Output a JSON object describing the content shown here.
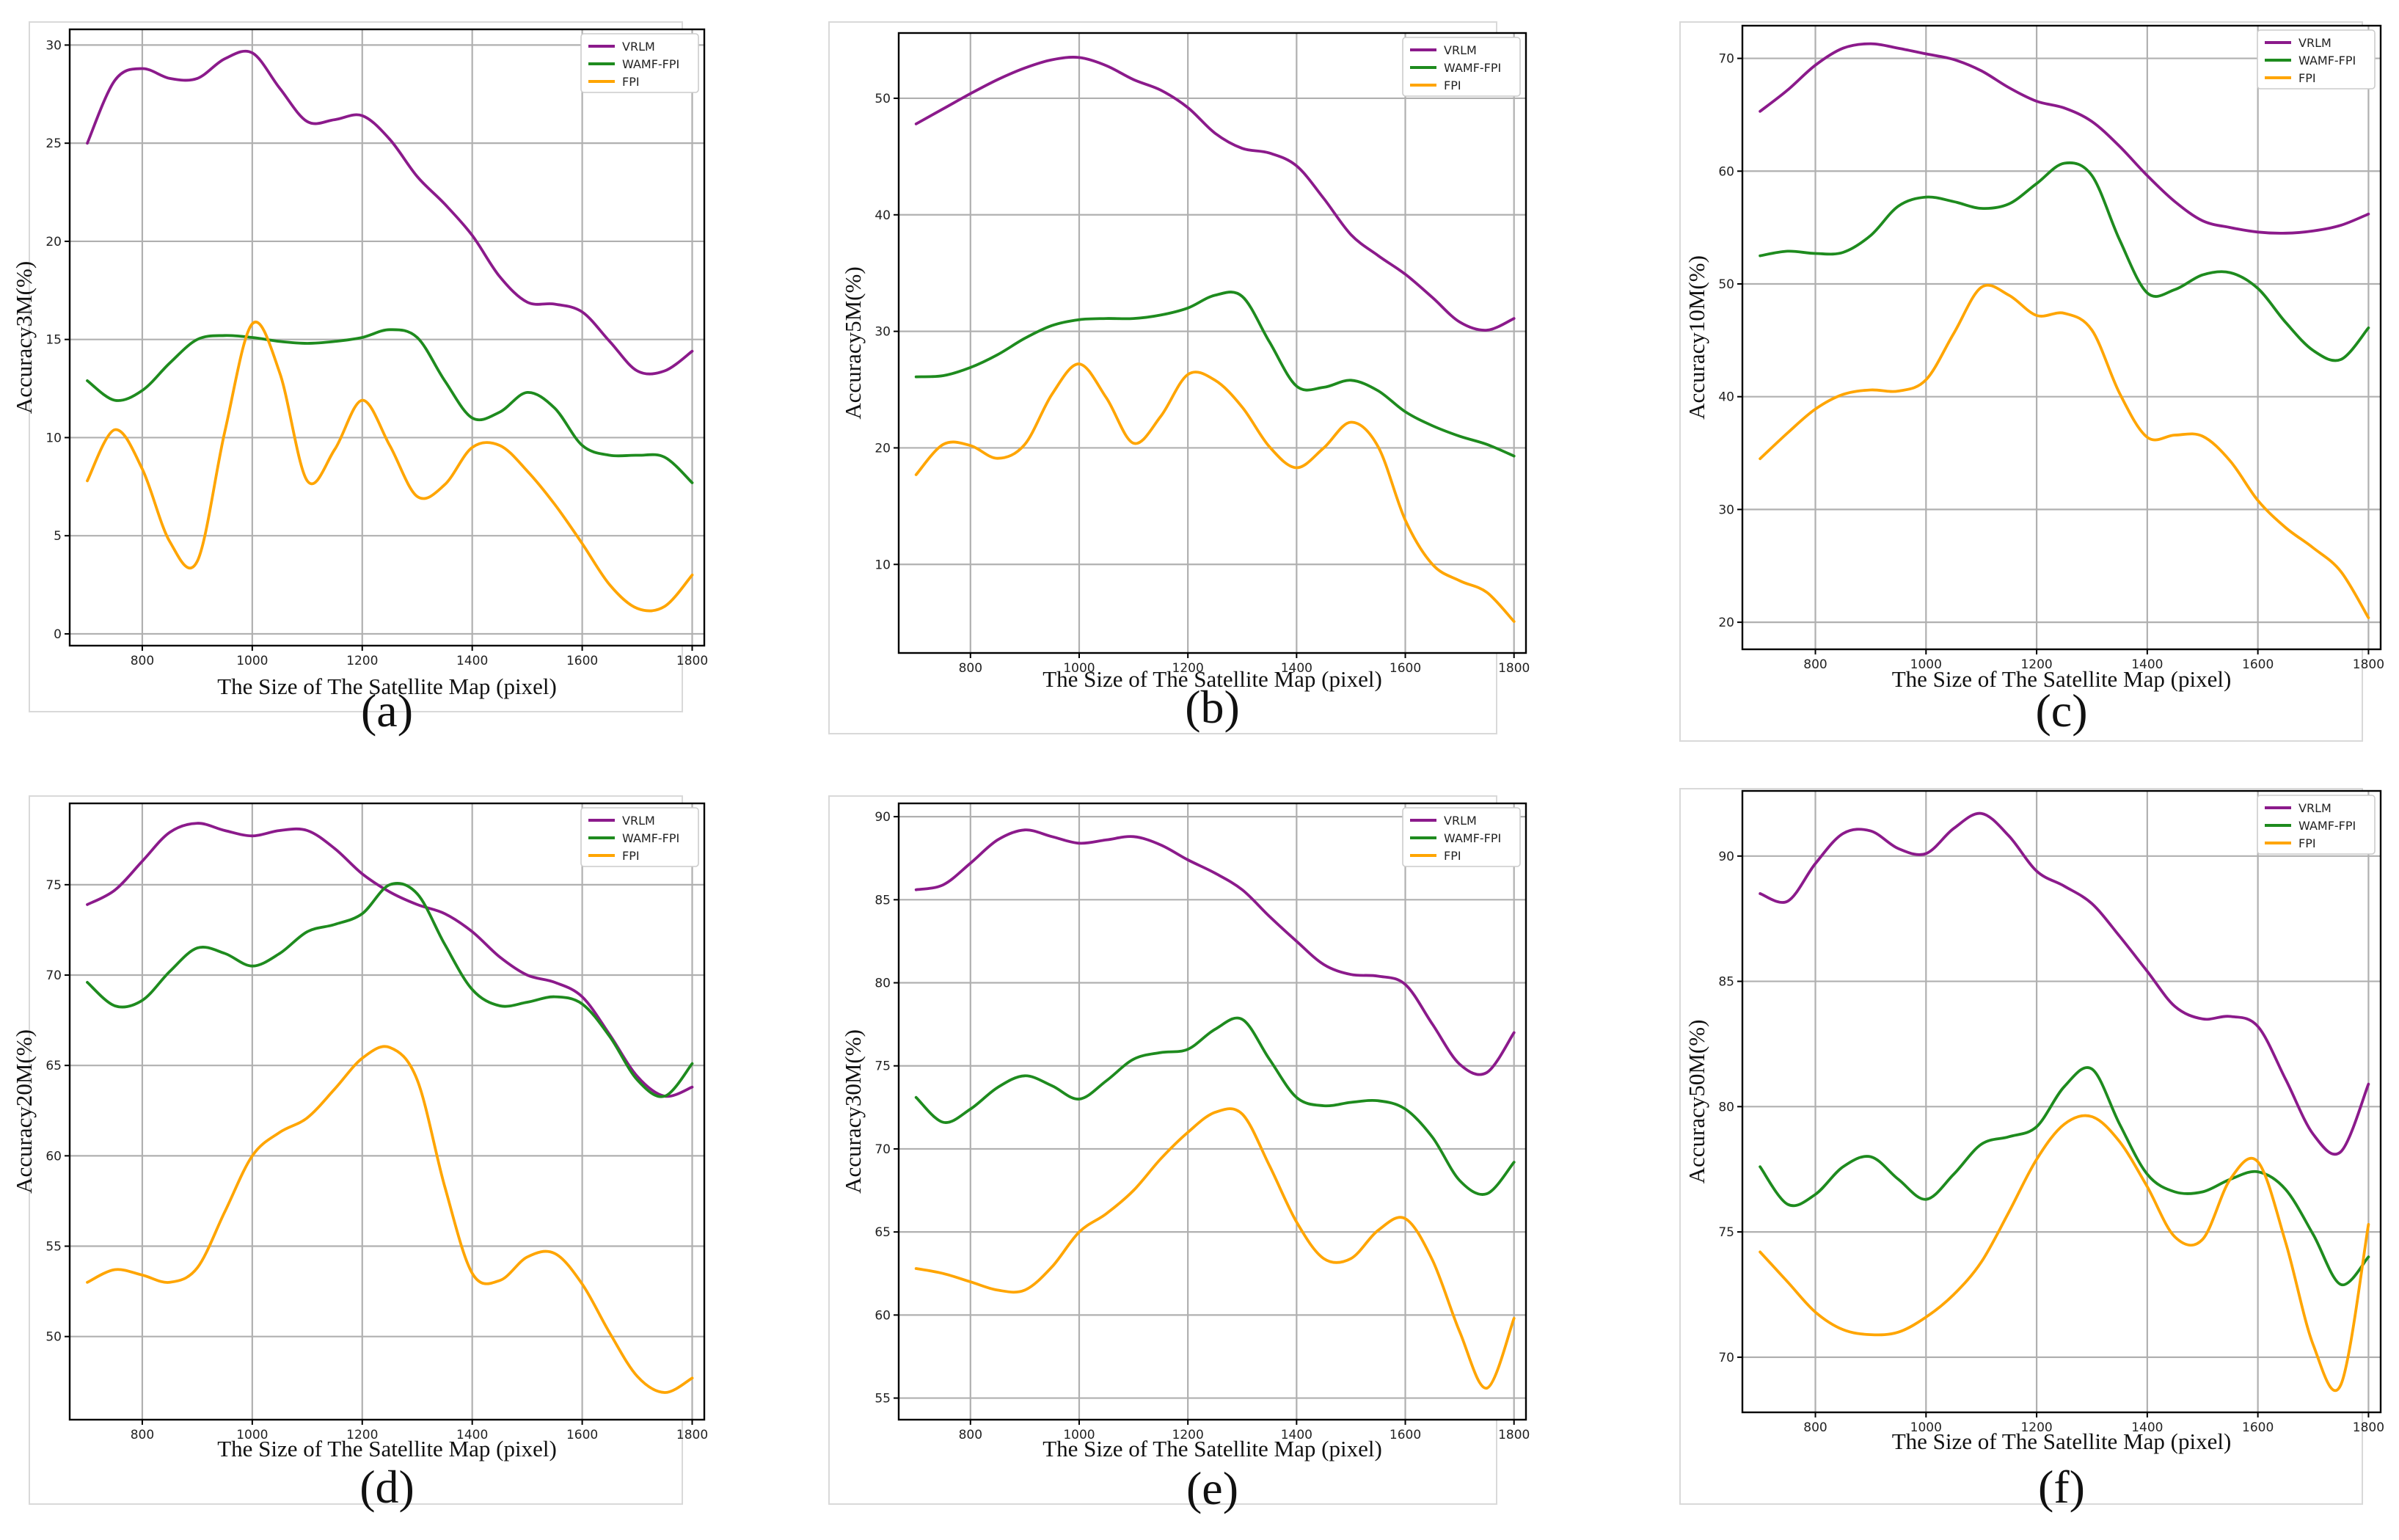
{
  "colors": {
    "VRLM": "#8B1A8B",
    "WAMF-FPI": "#1E8B1E",
    "FPI": "#FFA500"
  },
  "chart_data": [
    {
      "type": "line",
      "panel_label": "(a)",
      "xlabel": "The Size of The Satellite Map (pixel)",
      "ylabel": "Accuracy3M(%)",
      "xlim": [
        668,
        1822
      ],
      "ylim": [
        -0.6,
        30.8
      ],
      "xticks": [
        800,
        1000,
        1200,
        1400,
        1600,
        1800
      ],
      "yticks": [
        0,
        5,
        10,
        15,
        20,
        25,
        30
      ],
      "legend_position": "top-right",
      "x": [
        700,
        750,
        800,
        850,
        900,
        950,
        1000,
        1050,
        1100,
        1150,
        1200,
        1250,
        1300,
        1350,
        1400,
        1450,
        1500,
        1550,
        1600,
        1650,
        1700,
        1750,
        1800
      ],
      "series": [
        {
          "name": "VRLM",
          "values": [
            25.0,
            28.2,
            28.8,
            28.3,
            28.3,
            29.3,
            29.6,
            27.8,
            26.1,
            26.2,
            26.4,
            25.2,
            23.3,
            21.9,
            20.3,
            18.2,
            16.9,
            16.8,
            16.4,
            14.9,
            13.4,
            13.4,
            14.4
          ]
        },
        {
          "name": "WAMF-FPI",
          "values": [
            12.9,
            11.9,
            12.4,
            13.8,
            15.0,
            15.2,
            15.1,
            14.9,
            14.8,
            14.9,
            15.1,
            15.5,
            15.1,
            12.9,
            11.0,
            11.3,
            12.3,
            11.5,
            9.6,
            9.1,
            9.1,
            9.0,
            7.7
          ]
        },
        {
          "name": "FPI",
          "values": [
            7.8,
            10.4,
            8.4,
            4.7,
            3.7,
            10.3,
            15.8,
            13.3,
            7.8,
            9.4,
            11.9,
            9.6,
            7.0,
            7.6,
            9.5,
            9.6,
            8.3,
            6.6,
            4.6,
            2.5,
            1.3,
            1.4,
            3.0
          ]
        }
      ]
    },
    {
      "type": "line",
      "panel_label": "(b)",
      "xlabel": "The Size of The Satellite Map (pixel)",
      "ylabel": "Accuracy5M(%)",
      "xlim": [
        668,
        1822
      ],
      "ylim": [
        2.4,
        55.6
      ],
      "xticks": [
        800,
        1000,
        1200,
        1400,
        1600,
        1800
      ],
      "yticks": [
        10,
        20,
        30,
        40,
        50
      ],
      "legend_position": "top-right",
      "x": [
        700,
        750,
        800,
        850,
        900,
        950,
        1000,
        1050,
        1100,
        1150,
        1200,
        1250,
        1300,
        1350,
        1400,
        1450,
        1500,
        1550,
        1600,
        1650,
        1700,
        1750,
        1800
      ],
      "series": [
        {
          "name": "VRLM",
          "values": [
            47.8,
            49.1,
            50.4,
            51.6,
            52.6,
            53.3,
            53.5,
            52.8,
            51.6,
            50.7,
            49.2,
            47.0,
            45.7,
            45.3,
            44.2,
            41.4,
            38.3,
            36.5,
            34.9,
            32.9,
            30.8,
            30.1,
            31.1
          ]
        },
        {
          "name": "WAMF-FPI",
          "values": [
            26.1,
            26.2,
            26.9,
            28.0,
            29.4,
            30.5,
            31.0,
            31.1,
            31.1,
            31.4,
            32.0,
            33.1,
            33.0,
            29.1,
            25.3,
            25.2,
            25.8,
            24.9,
            23.1,
            21.9,
            21.0,
            20.3,
            19.3
          ]
        },
        {
          "name": "FPI",
          "values": [
            17.7,
            20.3,
            20.2,
            19.1,
            20.3,
            24.6,
            27.2,
            24.3,
            20.4,
            22.7,
            26.3,
            25.8,
            23.5,
            20.1,
            18.3,
            20.0,
            22.2,
            20.1,
            13.8,
            10.0,
            8.6,
            7.6,
            5.1
          ]
        }
      ]
    },
    {
      "type": "line",
      "panel_label": "(c)",
      "xlabel": "The Size of The Satellite Map (pixel)",
      "ylabel": "Accuracy10M(%)",
      "xlim": [
        668,
        1822
      ],
      "ylim": [
        17.6,
        72.9
      ],
      "xticks": [
        800,
        1000,
        1200,
        1400,
        1600,
        1800
      ],
      "yticks": [
        20,
        30,
        40,
        50,
        60,
        70
      ],
      "legend_position": "top-right",
      "x": [
        700,
        750,
        800,
        850,
        900,
        950,
        1000,
        1050,
        1100,
        1150,
        1200,
        1250,
        1300,
        1350,
        1400,
        1450,
        1500,
        1550,
        1600,
        1650,
        1700,
        1750,
        1800
      ],
      "series": [
        {
          "name": "VRLM",
          "values": [
            65.3,
            67.2,
            69.4,
            70.9,
            71.3,
            70.9,
            70.4,
            69.9,
            68.9,
            67.4,
            66.2,
            65.6,
            64.4,
            62.2,
            59.6,
            57.3,
            55.6,
            55.0,
            54.6,
            54.5,
            54.7,
            55.2,
            56.2
          ]
        },
        {
          "name": "WAMF-FPI",
          "values": [
            52.5,
            52.9,
            52.7,
            52.8,
            54.3,
            56.9,
            57.7,
            57.3,
            56.7,
            57.1,
            58.9,
            60.7,
            59.6,
            53.9,
            49.2,
            49.5,
            50.8,
            51.0,
            49.6,
            46.6,
            44.1,
            43.3,
            46.1
          ]
        },
        {
          "name": "FPI",
          "values": [
            34.5,
            36.8,
            38.9,
            40.2,
            40.6,
            40.5,
            41.5,
            45.6,
            49.7,
            49.0,
            47.2,
            47.4,
            45.9,
            40.3,
            36.4,
            36.6,
            36.5,
            34.3,
            30.8,
            28.4,
            26.6,
            24.5,
            20.4
          ]
        }
      ]
    },
    {
      "type": "line",
      "panel_label": "(d)",
      "xlabel": "The Size of The Satellite Map (pixel)",
      "ylabel": "Accuracy20M(%)",
      "xlim": [
        668,
        1822
      ],
      "ylim": [
        45.4,
        79.5
      ],
      "xticks": [
        800,
        1000,
        1200,
        1400,
        1600,
        1800
      ],
      "yticks": [
        50,
        55,
        60,
        65,
        70,
        75
      ],
      "legend_position": "top-right",
      "x": [
        700,
        750,
        800,
        850,
        900,
        950,
        1000,
        1050,
        1100,
        1150,
        1200,
        1250,
        1300,
        1350,
        1400,
        1450,
        1500,
        1550,
        1600,
        1650,
        1700,
        1750,
        1800
      ],
      "series": [
        {
          "name": "VRLM",
          "values": [
            73.9,
            74.7,
            76.3,
            77.9,
            78.4,
            78.0,
            77.7,
            78.0,
            78.0,
            77.0,
            75.6,
            74.6,
            73.9,
            73.4,
            72.4,
            71.0,
            70.0,
            69.6,
            68.8,
            66.7,
            64.4,
            63.3,
            63.8
          ]
        },
        {
          "name": "WAMF-FPI",
          "values": [
            69.6,
            68.3,
            68.6,
            70.2,
            71.5,
            71.2,
            70.5,
            71.2,
            72.4,
            72.8,
            73.4,
            75.0,
            74.5,
            71.7,
            69.2,
            68.3,
            68.5,
            68.8,
            68.4,
            66.6,
            64.2,
            63.3,
            65.1
          ]
        },
        {
          "name": "FPI",
          "values": [
            53.0,
            53.7,
            53.4,
            53.0,
            53.8,
            56.9,
            60.0,
            61.3,
            62.1,
            63.7,
            65.4,
            66.0,
            64.2,
            58.3,
            53.5,
            53.1,
            54.4,
            54.6,
            52.9,
            50.2,
            47.8,
            46.9,
            47.7
          ]
        }
      ]
    },
    {
      "type": "line",
      "panel_label": "(e)",
      "xlabel": "The Size of The Satellite Map (pixel)",
      "ylabel": "Accuracy30M(%)",
      "xlim": [
        668,
        1822
      ],
      "ylim": [
        53.7,
        90.8
      ],
      "xticks": [
        800,
        1000,
        1200,
        1400,
        1600,
        1800
      ],
      "yticks": [
        55,
        60,
        65,
        70,
        75,
        80,
        85,
        90
      ],
      "legend_position": "top-right",
      "x": [
        700,
        750,
        800,
        850,
        900,
        950,
        1000,
        1050,
        1100,
        1150,
        1200,
        1250,
        1300,
        1350,
        1400,
        1450,
        1500,
        1550,
        1600,
        1650,
        1700,
        1750,
        1800
      ],
      "series": [
        {
          "name": "VRLM",
          "values": [
            85.6,
            85.9,
            87.2,
            88.6,
            89.2,
            88.8,
            88.4,
            88.6,
            88.8,
            88.3,
            87.4,
            86.6,
            85.6,
            84.0,
            82.5,
            81.1,
            80.5,
            80.4,
            79.9,
            77.5,
            75.1,
            74.6,
            77.0
          ]
        },
        {
          "name": "WAMF-FPI",
          "values": [
            73.1,
            71.6,
            72.4,
            73.7,
            74.4,
            73.8,
            73.0,
            74.1,
            75.4,
            75.8,
            76.0,
            77.2,
            77.8,
            75.4,
            73.1,
            72.6,
            72.8,
            72.9,
            72.4,
            70.7,
            68.1,
            67.3,
            69.2
          ]
        },
        {
          "name": "FPI",
          "values": [
            62.8,
            62.5,
            62.0,
            61.5,
            61.5,
            62.9,
            65.0,
            66.1,
            67.5,
            69.4,
            71.0,
            72.2,
            72.1,
            69.0,
            65.6,
            63.4,
            63.4,
            65.1,
            65.8,
            63.3,
            59.0,
            55.6,
            59.8
          ]
        }
      ]
    },
    {
      "type": "line",
      "panel_label": "(f)",
      "xlabel": "The Size of The Satellite Map (pixel)",
      "ylabel": "Accuracy50M(%)",
      "xlim": [
        668,
        1822
      ],
      "ylim": [
        67.8,
        92.6
      ],
      "xticks": [
        800,
        1000,
        1200,
        1400,
        1600,
        1800
      ],
      "yticks": [
        70,
        75,
        80,
        85,
        90
      ],
      "legend_position": "top-right",
      "x": [
        700,
        750,
        800,
        850,
        900,
        950,
        1000,
        1050,
        1100,
        1150,
        1200,
        1250,
        1300,
        1350,
        1400,
        1450,
        1500,
        1550,
        1600,
        1650,
        1700,
        1750,
        1800
      ],
      "series": [
        {
          "name": "VRLM",
          "values": [
            88.5,
            88.2,
            89.7,
            90.9,
            91.0,
            90.3,
            90.1,
            91.1,
            91.7,
            90.8,
            89.4,
            88.8,
            88.1,
            86.8,
            85.4,
            84.0,
            83.5,
            83.6,
            83.2,
            81.1,
            78.9,
            78.2,
            80.9
          ]
        },
        {
          "name": "WAMF-FPI",
          "values": [
            77.6,
            76.1,
            76.5,
            77.6,
            78.0,
            77.1,
            76.3,
            77.3,
            78.5,
            78.8,
            79.2,
            80.8,
            81.5,
            79.3,
            77.3,
            76.6,
            76.6,
            77.1,
            77.4,
            76.7,
            74.9,
            72.9,
            74.0
          ]
        },
        {
          "name": "FPI",
          "values": [
            74.2,
            73.0,
            71.8,
            71.1,
            70.9,
            71.0,
            71.6,
            72.5,
            73.8,
            75.8,
            77.9,
            79.3,
            79.6,
            78.6,
            76.8,
            74.8,
            74.7,
            77.1,
            77.8,
            74.6,
            70.5,
            68.9,
            75.3
          ]
        }
      ]
    }
  ]
}
